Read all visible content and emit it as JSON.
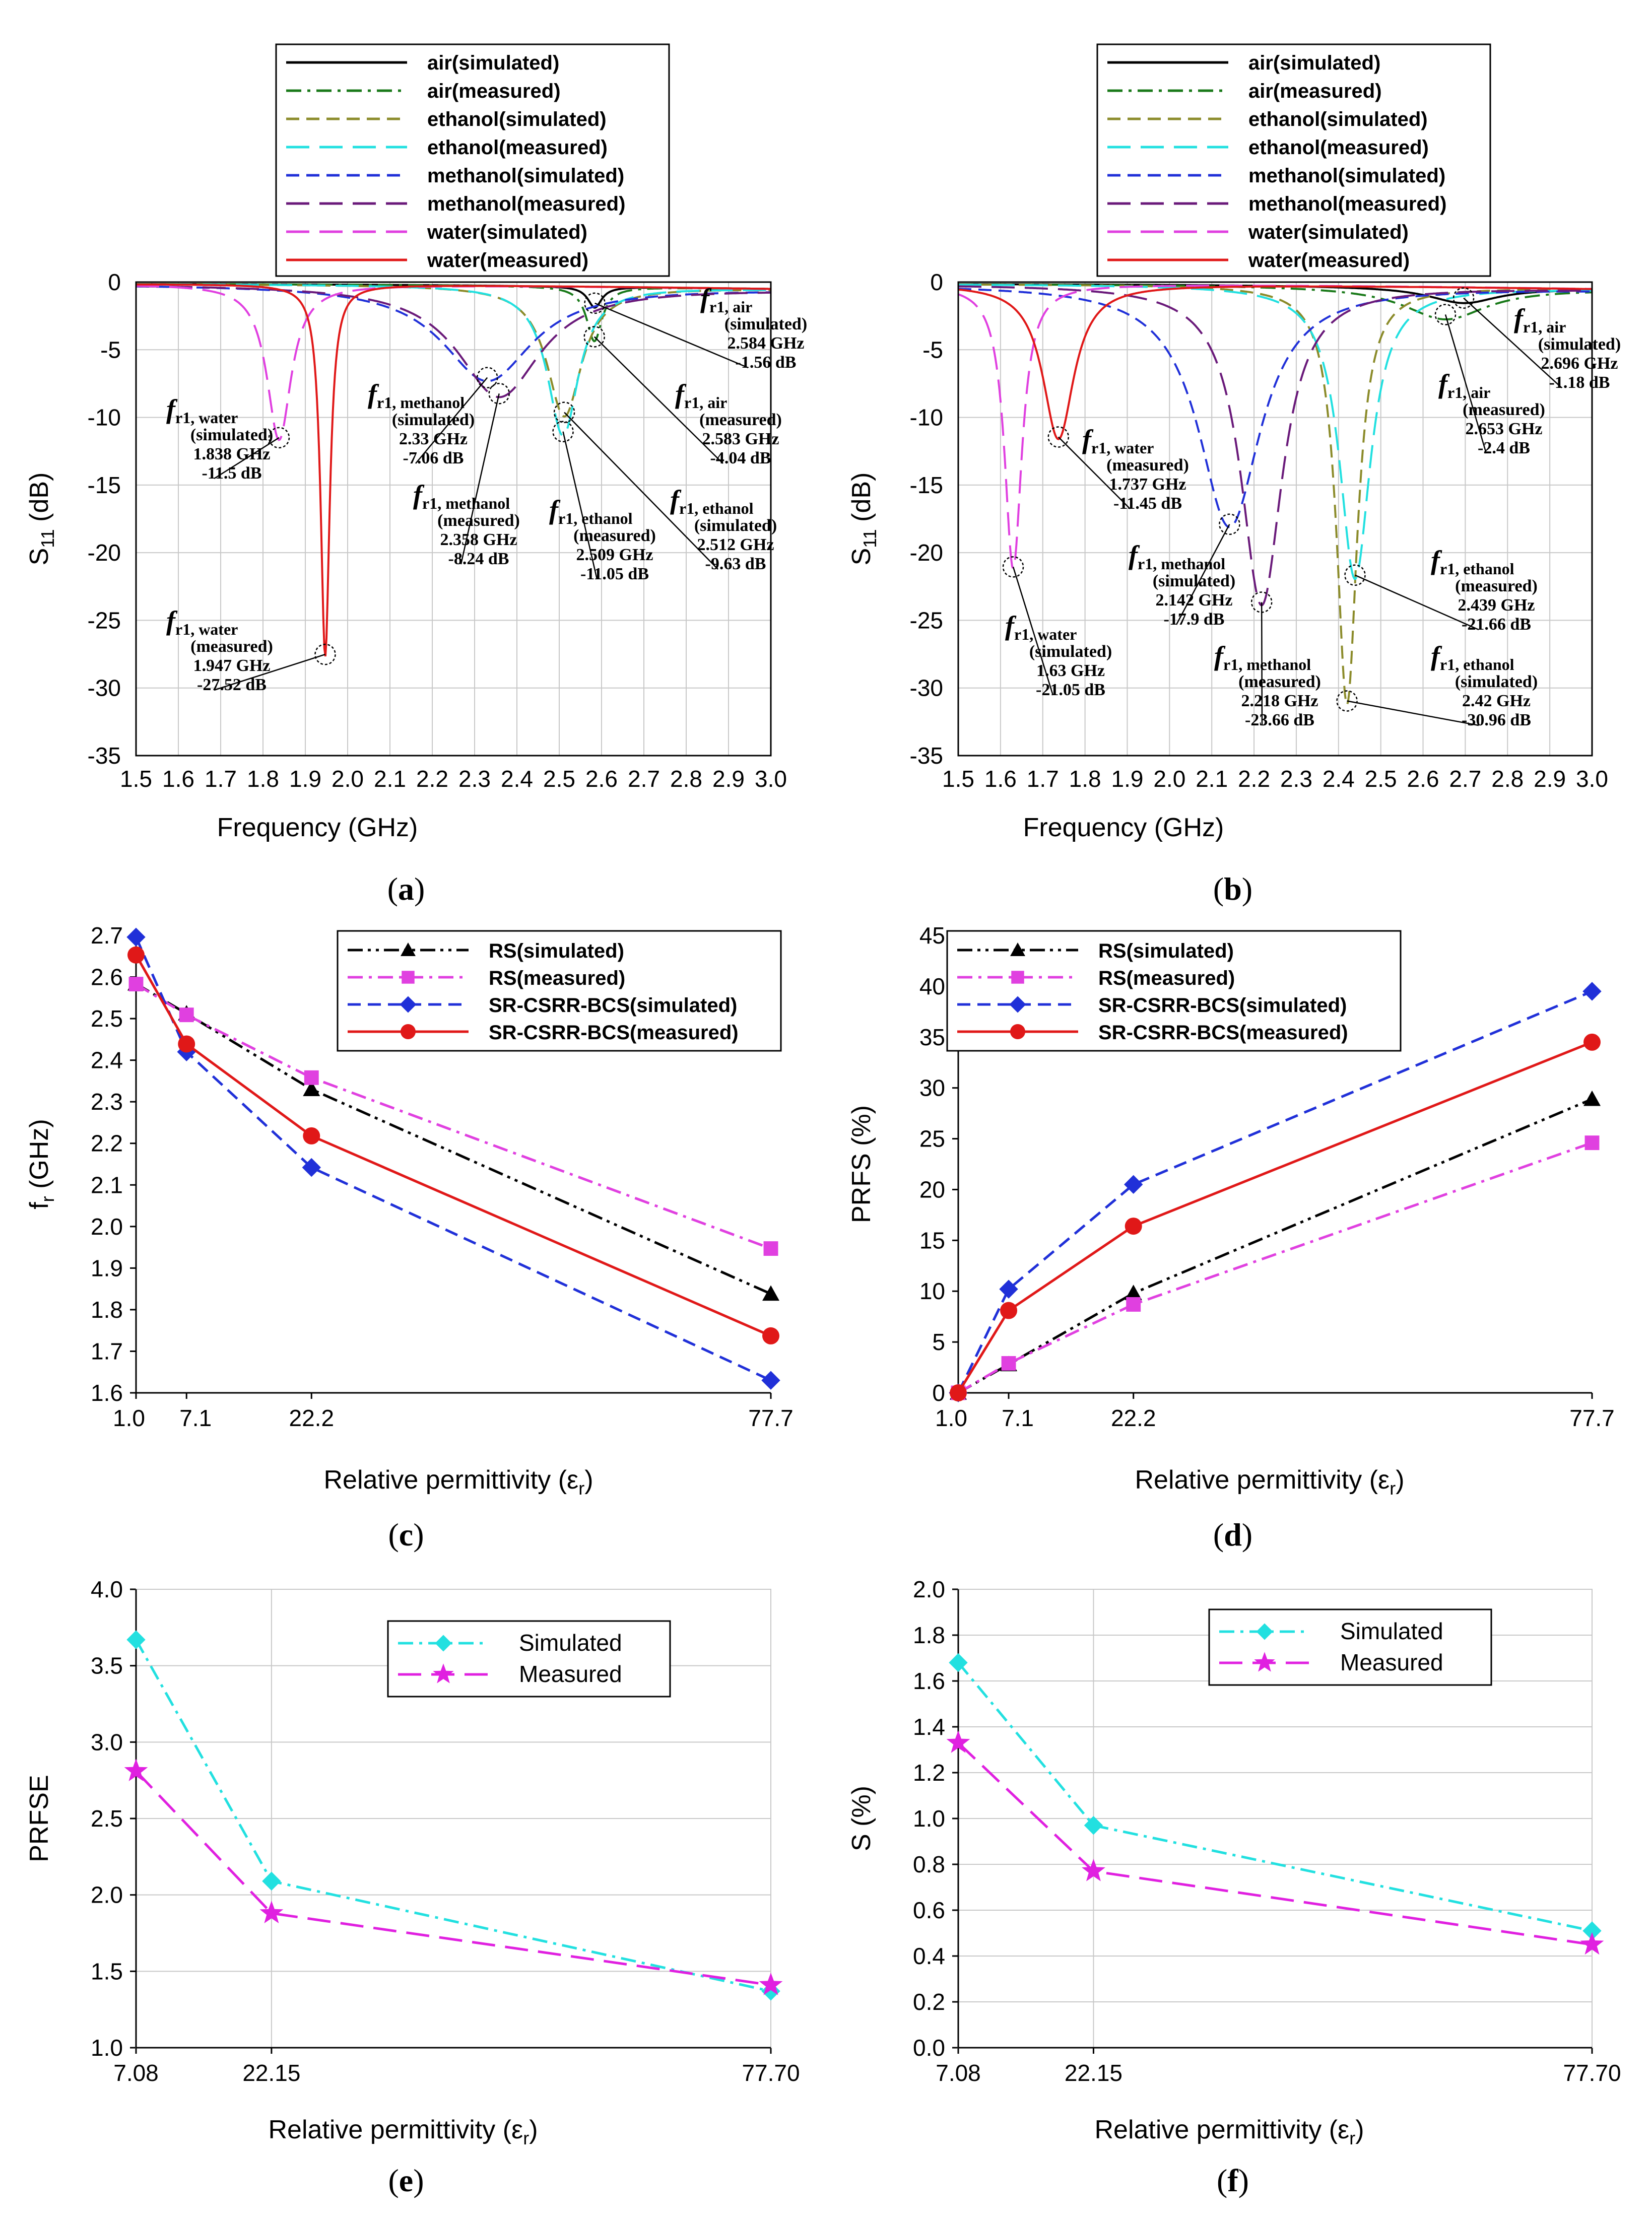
{
  "figure": {
    "panel_labels": [
      "a",
      "b",
      "c",
      "d",
      "e",
      "f"
    ]
  },
  "chart_data": [
    {
      "id": "a",
      "type": "line",
      "title": "",
      "xlabel": "Frequency (GHz)",
      "ylabel_main": "S",
      "ylabel_sub": "11",
      "ylabel_unit": " (dB)",
      "xlim": [
        1.5,
        3.0
      ],
      "ylim": [
        -35,
        0
      ],
      "xticks": [
        "1.5",
        "1.6",
        "1.7",
        "1.8",
        "1.9",
        "2.0",
        "2.1",
        "2.2",
        "2.3",
        "2.4",
        "2.5",
        "2.6",
        "2.7",
        "2.8",
        "2.9",
        "3.0"
      ],
      "yticks": [
        "0",
        "-5",
        "-10",
        "-15",
        "-20",
        "-25",
        "-30",
        "-35"
      ],
      "grid": true,
      "legend_placement": "top-center",
      "series": [
        {
          "name": "air(simulated)",
          "color": "#000000",
          "dash": "solid",
          "resonances": [
            {
              "f": 2.584,
              "db": -1.56,
              "w": 0.02
            }
          ]
        },
        {
          "name": "air(measured)",
          "color": "#1a7a1a",
          "dash": "dashdot",
          "resonances": [
            {
              "f": 2.583,
              "db": -4.04,
              "w": 0.022
            }
          ]
        },
        {
          "name": "ethanol(simulated)",
          "color": "#8b8b2a",
          "dash": "dash",
          "resonances": [
            {
              "f": 2.512,
              "db": -9.63,
              "w": 0.05
            }
          ]
        },
        {
          "name": "ethanol(measured)",
          "color": "#22e0e0",
          "dash": "longdash",
          "resonances": [
            {
              "f": 2.509,
              "db": -11.05,
              "w": 0.045
            }
          ]
        },
        {
          "name": "methanol(simulated)",
          "color": "#2030d8",
          "dash": "dash",
          "resonances": [
            {
              "f": 2.33,
              "db": -7.06,
              "w": 0.13
            }
          ]
        },
        {
          "name": "methanol(measured)",
          "color": "#6a1a7a",
          "dash": "longdash",
          "resonances": [
            {
              "f": 2.358,
              "db": -8.24,
              "w": 0.12
            }
          ]
        },
        {
          "name": "water(simulated)",
          "color": "#e040e0",
          "dash": "longdash",
          "resonances": [
            {
              "f": 1.838,
              "db": -11.5,
              "w": 0.035
            }
          ]
        },
        {
          "name": "water(measured)",
          "color": "#e01818",
          "dash": "solid",
          "resonances": [
            {
              "f": 1.947,
              "db": -27.52,
              "w": 0.013
            }
          ]
        }
      ],
      "annotations": [
        {
          "sub": "r1, water",
          "lines": [
            "(simulated)",
            "1.838 GHz",
            "-11.5 dB"
          ],
          "f": 1.838,
          "db": -11.5
        },
        {
          "sub": "r1, water",
          "lines": [
            "(measured)",
            "1.947 GHz",
            "-27.52 dB"
          ],
          "f": 1.947,
          "db": -27.52
        },
        {
          "sub": "r1, methanol",
          "lines": [
            "(simulated)",
            "2.33 GHz",
            "-7.06 dB"
          ],
          "f": 2.33,
          "db": -7.06
        },
        {
          "sub": "r1, methanol",
          "lines": [
            "(measured)",
            "2.358 GHz",
            "-8.24 dB"
          ],
          "f": 2.358,
          "db": -8.24
        },
        {
          "sub": "r1, ethanol",
          "lines": [
            "(measured)",
            "2.509 GHz",
            "-11.05 dB"
          ],
          "f": 2.509,
          "db": -11.05
        },
        {
          "sub": "r1, ethanol",
          "lines": [
            "(simulated)",
            "2.512 GHz",
            "-9.63 dB"
          ],
          "f": 2.512,
          "db": -9.63
        },
        {
          "sub": "r1, air",
          "lines": [
            "(simulated)",
            "2.584 GHz",
            "-1.56 dB"
          ],
          "f": 2.584,
          "db": -1.56
        },
        {
          "sub": "r1, air",
          "lines": [
            "(measured)",
            "2.583 GHz",
            "-4.04 dB"
          ],
          "f": 2.583,
          "db": -4.04
        }
      ]
    },
    {
      "id": "b",
      "type": "line",
      "title": "",
      "xlabel": "Frequency (GHz)",
      "ylabel_main": "S",
      "ylabel_sub": "11",
      "ylabel_unit": " (dB)",
      "xlim": [
        1.5,
        3.0
      ],
      "ylim": [
        -35,
        0
      ],
      "xticks": [
        "1.5",
        "1.6",
        "1.7",
        "1.8",
        "1.9",
        "2.0",
        "2.1",
        "2.2",
        "2.3",
        "2.4",
        "2.5",
        "2.6",
        "2.7",
        "2.8",
        "2.9",
        "3.0"
      ],
      "yticks": [
        "0",
        "-5",
        "-10",
        "-15",
        "-20",
        "-25",
        "-30",
        "-35"
      ],
      "grid": true,
      "legend_placement": "top-center",
      "series": [
        {
          "name": "air(simulated)",
          "color": "#000000",
          "dash": "solid",
          "resonances": [
            {
              "f": 2.696,
              "db": -1.18,
              "w": 0.1
            }
          ]
        },
        {
          "name": "air(measured)",
          "color": "#1a7a1a",
          "dash": "dashdot",
          "resonances": [
            {
              "f": 2.653,
              "db": -2.4,
              "w": 0.12
            }
          ]
        },
        {
          "name": "ethanol(simulated)",
          "color": "#8b8b2a",
          "dash": "dash",
          "resonances": [
            {
              "f": 2.42,
              "db": -30.96,
              "w": 0.03
            }
          ]
        },
        {
          "name": "ethanol(measured)",
          "color": "#22e0e0",
          "dash": "longdash",
          "resonances": [
            {
              "f": 2.439,
              "db": -21.66,
              "w": 0.045
            }
          ]
        },
        {
          "name": "methanol(simulated)",
          "color": "#2030d8",
          "dash": "dash",
          "resonances": [
            {
              "f": 2.142,
              "db": -17.9,
              "w": 0.09
            }
          ]
        },
        {
          "name": "methanol(measured)",
          "color": "#6a1a7a",
          "dash": "longdash",
          "resonances": [
            {
              "f": 2.218,
              "db": -23.66,
              "w": 0.06
            }
          ]
        },
        {
          "name": "water(simulated)",
          "color": "#e040e0",
          "dash": "longdash",
          "resonances": [
            {
              "f": 1.63,
              "db": -21.05,
              "w": 0.025
            }
          ]
        },
        {
          "name": "water(measured)",
          "color": "#e01818",
          "dash": "solid",
          "resonances": [
            {
              "f": 1.737,
              "db": -11.45,
              "w": 0.045
            }
          ]
        }
      ],
      "annotations": [
        {
          "sub": "r1, water",
          "lines": [
            "(measured)",
            "1.737 GHz",
            "-11.45 dB"
          ],
          "f": 1.737,
          "db": -11.45
        },
        {
          "sub": "r1, water",
          "lines": [
            "(simulated)",
            "1.63 GHz",
            "-21.05 dB"
          ],
          "f": 1.63,
          "db": -21.05
        },
        {
          "sub": "r1, methanol",
          "lines": [
            "(simulated)",
            "2.142 GHz",
            "-17.9 dB"
          ],
          "f": 2.142,
          "db": -17.9
        },
        {
          "sub": "r1, methanol",
          "lines": [
            "(measured)",
            "2.218 GHz",
            "-23.66 dB"
          ],
          "f": 2.218,
          "db": -23.66
        },
        {
          "sub": "r1, ethanol",
          "lines": [
            "(measured)",
            "2.439 GHz",
            "-21.66 dB"
          ],
          "f": 2.439,
          "db": -21.66
        },
        {
          "sub": "r1, ethanol",
          "lines": [
            "(simulated)",
            "2.42 GHz",
            "-30.96 dB"
          ],
          "f": 2.42,
          "db": -30.96
        },
        {
          "sub": "r1, air",
          "lines": [
            "(simulated)",
            "2.696 GHz",
            "-1.18 dB"
          ],
          "f": 2.696,
          "db": -1.18
        },
        {
          "sub": "r1, air",
          "lines": [
            "(measured)",
            "2.653 GHz",
            "-2.4 dB"
          ],
          "f": 2.653,
          "db": -2.4
        }
      ]
    },
    {
      "id": "c",
      "type": "line",
      "title": "",
      "xlabel": "Relative permittivity (ε",
      "xlabel_sub": "r",
      "xlabel_end": ")",
      "ylabel_main": "f",
      "ylabel_sub": "r",
      "ylabel_unit": " (GHz)",
      "x": [
        1.0,
        7.1,
        22.2,
        77.7
      ],
      "xticks": [
        "1.0",
        "7.1",
        "22.2",
        "77.7"
      ],
      "xlim": [
        1.0,
        77.7
      ],
      "ylim": [
        1.6,
        2.7
      ],
      "yticks": [
        "2.7",
        "2.6",
        "2.5",
        "2.4",
        "2.3",
        "2.2",
        "2.1",
        "2.0",
        "1.9",
        "1.8",
        "1.7",
        "1.6"
      ],
      "grid": false,
      "legend_placement": "top-right",
      "series": [
        {
          "name": "RS(simulated)",
          "color": "#000000",
          "dash": "dashdotdot",
          "marker": "triangle",
          "values": [
            2.584,
            2.512,
            2.33,
            1.838
          ]
        },
        {
          "name": "RS(measured)",
          "color": "#e040e0",
          "dash": "dashdot",
          "marker": "square",
          "values": [
            2.583,
            2.509,
            2.358,
            1.947
          ]
        },
        {
          "name": "SR-CSRR-BCS(simulated)",
          "color": "#2030d8",
          "dash": "dash",
          "marker": "diamond",
          "values": [
            2.696,
            2.42,
            2.142,
            1.63
          ]
        },
        {
          "name": "SR-CSRR-BCS(measured)",
          "color": "#e01818",
          "dash": "solid",
          "marker": "circle",
          "values": [
            2.653,
            2.439,
            2.218,
            1.737
          ]
        }
      ]
    },
    {
      "id": "d",
      "type": "line",
      "title": "",
      "xlabel": "Relative permittivity (ε",
      "xlabel_sub": "r",
      "xlabel_end": ")",
      "ylabel_main": "PRFS (%)",
      "ylabel_sub": "",
      "ylabel_unit": "",
      "x": [
        1.0,
        7.1,
        22.2,
        77.7
      ],
      "xticks": [
        "1.0",
        "7.1",
        "22.2",
        "77.7"
      ],
      "xlim": [
        1.0,
        77.7
      ],
      "ylim": [
        0,
        45
      ],
      "yticks": [
        "45",
        "40",
        "35",
        "30",
        "25",
        "20",
        "15",
        "10",
        "5",
        "0"
      ],
      "grid": false,
      "legend_placement": "top-right",
      "series": [
        {
          "name": "RS(simulated)",
          "color": "#000000",
          "dash": "dashdotdot",
          "marker": "triangle",
          "values": [
            0,
            2.8,
            9.8,
            28.9
          ]
        },
        {
          "name": "RS(measured)",
          "color": "#e040e0",
          "dash": "dashdot",
          "marker": "square",
          "values": [
            0,
            2.9,
            8.7,
            24.6
          ]
        },
        {
          "name": "SR-CSRR-BCS(simulated)",
          "color": "#2030d8",
          "dash": "dash",
          "marker": "diamond",
          "values": [
            0,
            10.2,
            20.5,
            39.5
          ]
        },
        {
          "name": "SR-CSRR-BCS(measured)",
          "color": "#e01818",
          "dash": "solid",
          "marker": "circle",
          "values": [
            0,
            8.1,
            16.4,
            34.5
          ]
        }
      ]
    },
    {
      "id": "e",
      "type": "line",
      "title": "",
      "xlabel": "Relative permittivity (ε",
      "xlabel_sub": "r",
      "xlabel_end": ")",
      "ylabel_main": "PRFSE",
      "ylabel_sub": "",
      "ylabel_unit": "",
      "x": [
        7.08,
        22.15,
        77.7
      ],
      "xticks": [
        "7.08",
        "22.15",
        "77.70"
      ],
      "xlim": [
        7.08,
        77.7
      ],
      "ylim": [
        1.0,
        4.0
      ],
      "yticks": [
        "4.0",
        "3.5",
        "3.0",
        "2.5",
        "2.0",
        "1.5",
        "1.0"
      ],
      "grid": true,
      "legend_placement": "top-right",
      "series": [
        {
          "name": "Simulated",
          "color": "#22e0e0",
          "dash": "dashdot",
          "marker": "diamond",
          "values": [
            3.67,
            2.09,
            1.37
          ]
        },
        {
          "name": "Measured",
          "color": "#e020e0",
          "dash": "longdash",
          "marker": "star",
          "values": [
            2.81,
            1.88,
            1.41
          ]
        }
      ]
    },
    {
      "id": "f",
      "type": "line",
      "title": "",
      "xlabel": "Relative permittivity (ε",
      "xlabel_sub": "r",
      "xlabel_end": ")",
      "ylabel_main": "S (%)",
      "ylabel_sub": "",
      "ylabel_unit": "",
      "x": [
        7.08,
        22.15,
        77.7
      ],
      "xticks": [
        "7.08",
        "22.15",
        "77.70"
      ],
      "xlim": [
        7.08,
        77.7
      ],
      "ylim": [
        0.0,
        2.0
      ],
      "yticks": [
        "2.0",
        "1.8",
        "1.6",
        "1.4",
        "1.2",
        "1.0",
        "0.8",
        "0.6",
        "0.4",
        "0.2",
        "0.0"
      ],
      "grid": true,
      "legend_placement": "top-right",
      "series": [
        {
          "name": "Simulated",
          "color": "#22e0e0",
          "dash": "dashdot",
          "marker": "diamond",
          "values": [
            1.68,
            0.97,
            0.51
          ]
        },
        {
          "name": "Measured",
          "color": "#e020e0",
          "dash": "longdash",
          "marker": "star",
          "values": [
            1.33,
            0.77,
            0.45
          ]
        }
      ]
    }
  ]
}
